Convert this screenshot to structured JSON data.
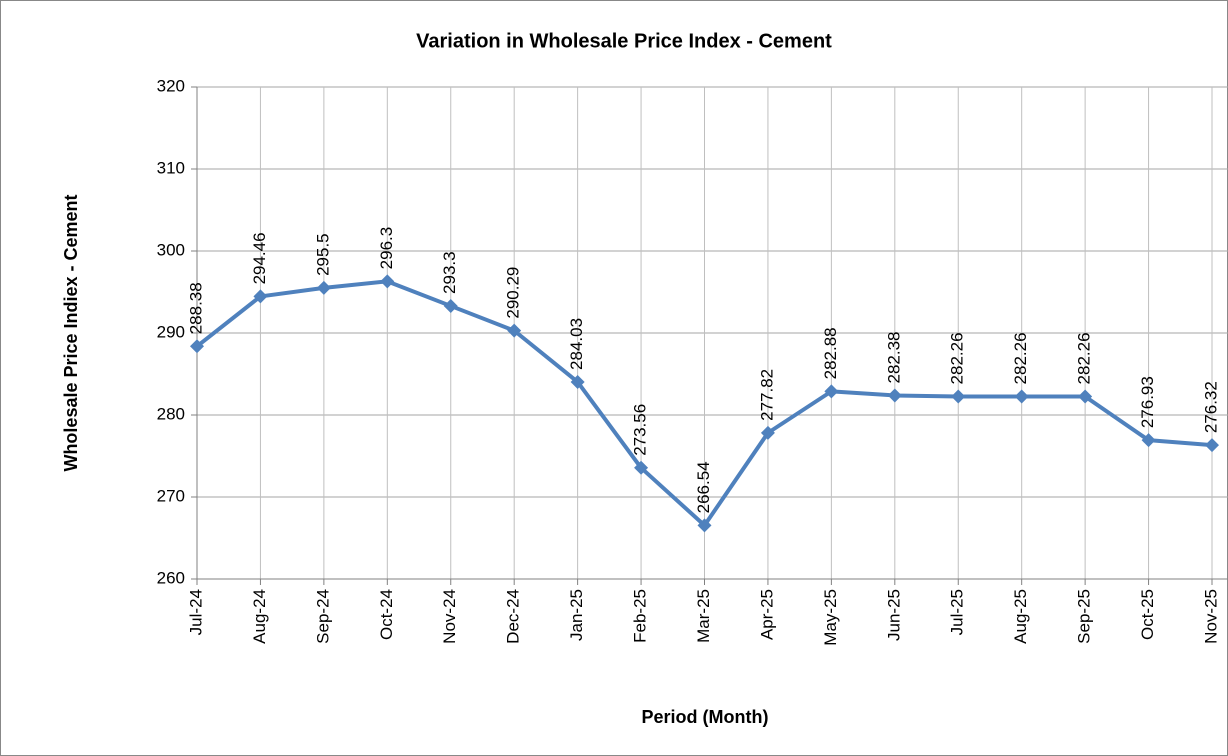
{
  "chart_data": {
    "type": "line",
    "title": "Variation in Wholesale Price Index - Cement",
    "x_label": "Period (Month)",
    "y_label": "Wholesale Price Indiex - Cement",
    "categories": [
      "Jul-24",
      "Aug-24",
      "Sep-24",
      "Oct-24",
      "Nov-24",
      "Dec-24",
      "Jan-25",
      "Feb-25",
      "Mar-25",
      "Apr-25",
      "May-25",
      "Jun-25",
      "Jul-25",
      "Aug-25",
      "Sep-25",
      "Oct-25",
      "Nov-25"
    ],
    "series": [
      {
        "name": "Wholesale Price Index - Cement",
        "color": "#4f81bd",
        "values": [
          288.38,
          294.46,
          295.5,
          296.3,
          293.3,
          290.29,
          284.03,
          273.56,
          266.54,
          277.82,
          282.88,
          282.38,
          282.26,
          282.26,
          282.26,
          276.93,
          276.32
        ]
      }
    ],
    "ylim": [
      260,
      320
    ],
    "yticks": [
      260,
      270,
      280,
      290,
      300,
      310,
      320
    ],
    "grid": true
  }
}
